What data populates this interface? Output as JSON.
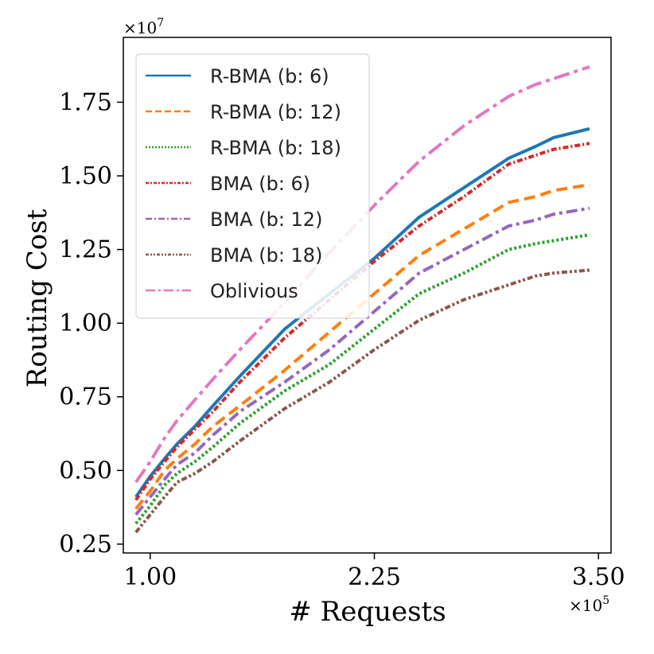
{
  "chart_data": {
    "type": "line",
    "xlabel": "# Requests",
    "ylabel": "Routing Cost",
    "x_multiplier": "×10",
    "x_multiplier_exp": "5",
    "y_multiplier": "×10",
    "y_multiplier_exp": "7",
    "xlim": [
      0.85,
      3.57
    ],
    "ylim": [
      0.22,
      1.97
    ],
    "x_ticks": [
      1.0,
      2.25,
      3.5
    ],
    "x_tick_labels": [
      "1.00",
      "2.25",
      "3.50"
    ],
    "y_ticks": [
      0.25,
      0.5,
      0.75,
      1.0,
      1.25,
      1.5,
      1.75
    ],
    "y_tick_labels": [
      "0.25",
      "0.50",
      "0.75",
      "1.00",
      "1.25",
      "1.50",
      "1.75"
    ],
    "legend_position": "top-left",
    "x": [
      0.92,
      1.0,
      1.08,
      1.15,
      1.25,
      1.35,
      1.5,
      1.75,
      2.0,
      2.25,
      2.5,
      2.75,
      3.0,
      3.15,
      3.25,
      3.45
    ],
    "series": [
      {
        "name": "R-BMA (b: 6)",
        "color": "#1f77b4",
        "dash": "solid",
        "values": [
          0.41,
          0.48,
          0.54,
          0.59,
          0.65,
          0.72,
          0.82,
          0.98,
          1.1,
          1.22,
          1.36,
          1.46,
          1.56,
          1.6,
          1.63,
          1.66
        ]
      },
      {
        "name": "R-BMA (b: 12)",
        "color": "#ff7f0e",
        "dash": "dashed",
        "values": [
          0.37,
          0.43,
          0.5,
          0.54,
          0.59,
          0.65,
          0.72,
          0.84,
          0.97,
          1.1,
          1.23,
          1.32,
          1.41,
          1.43,
          1.45,
          1.47
        ]
      },
      {
        "name": "R-BMA (b: 18)",
        "color": "#2ca02c",
        "dash": "dotted",
        "values": [
          0.32,
          0.38,
          0.45,
          0.49,
          0.53,
          0.58,
          0.66,
          0.77,
          0.86,
          0.98,
          1.1,
          1.17,
          1.25,
          1.27,
          1.28,
          1.3
        ]
      },
      {
        "name": "BMA (b: 6)",
        "color": "#d62728",
        "dash": "dashdot-short",
        "values": [
          0.4,
          0.47,
          0.53,
          0.58,
          0.64,
          0.7,
          0.8,
          0.95,
          1.08,
          1.21,
          1.33,
          1.43,
          1.54,
          1.57,
          1.59,
          1.61
        ]
      },
      {
        "name": "BMA (b: 12)",
        "color": "#9467bd",
        "dash": "dashdot",
        "values": [
          0.35,
          0.41,
          0.47,
          0.52,
          0.56,
          0.62,
          0.7,
          0.8,
          0.91,
          1.04,
          1.17,
          1.25,
          1.33,
          1.35,
          1.37,
          1.39
        ]
      },
      {
        "name": "BMA (b: 18)",
        "color": "#8c564b",
        "dash": "dashdotdot",
        "values": [
          0.29,
          0.35,
          0.41,
          0.46,
          0.49,
          0.53,
          0.6,
          0.71,
          0.8,
          0.91,
          1.01,
          1.08,
          1.13,
          1.16,
          1.17,
          1.18
        ]
      },
      {
        "name": "Oblivious",
        "color": "#e377c2",
        "dash": "longdashdot",
        "values": [
          0.46,
          0.53,
          0.61,
          0.67,
          0.74,
          0.81,
          0.91,
          1.07,
          1.24,
          1.4,
          1.55,
          1.67,
          1.77,
          1.81,
          1.83,
          1.87
        ]
      }
    ]
  }
}
